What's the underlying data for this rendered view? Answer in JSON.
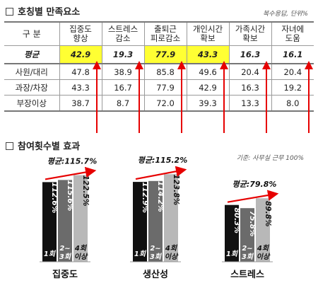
{
  "section1": {
    "title": "호칭별 만족요소",
    "note": "복수응답, 단위%"
  },
  "table": {
    "corner": "구 분",
    "columns": [
      [
        "집중도",
        "향상"
      ],
      [
        "스트레스",
        "감소"
      ],
      [
        "출퇴근",
        "피로감소"
      ],
      [
        "개인시간",
        "확보"
      ],
      [
        "가족시간",
        "확보"
      ],
      [
        "자녀에",
        "도움"
      ]
    ],
    "avg": {
      "label": "평균",
      "values": [
        "42.9",
        "19.3",
        "77.9",
        "43.3",
        "16.3",
        "16.1"
      ]
    },
    "rows": [
      {
        "label": "사원/대리",
        "values": [
          "47.8",
          "38.9",
          "85.8",
          "49.6",
          "20.4",
          "20.4"
        ]
      },
      {
        "label": "과장/차장",
        "values": [
          "43.3",
          "16.7",
          "77.9",
          "42.9",
          "16.3",
          "19.2"
        ]
      },
      {
        "label": "부장이상",
        "values": [
          "38.7",
          "8.7",
          "72.0",
          "39.3",
          "13.3",
          "8.0"
        ]
      }
    ],
    "arrow_color": "#e60000"
  },
  "section2": {
    "title": "참여횟수별 효과",
    "note": "기준: 사무실 근무 100%"
  },
  "chart_data": {
    "type": "bar",
    "categories": [
      "집중도",
      "생산성",
      "스트레스"
    ],
    "series": [
      {
        "name": "1회",
        "values": [
          112.6,
          112.9,
          80.3
        ],
        "labels": [
          "112.6%",
          "112.9%",
          "80.3%"
        ],
        "color": "#111111"
      },
      {
        "name": "2~3회",
        "values": [
          115.6,
          114.2,
          75.8
        ],
        "labels": [
          "115.6%",
          "114.2%",
          "75.8%"
        ],
        "color": "#6b6b6b"
      },
      {
        "name": "4회 이상",
        "values": [
          122.5,
          123.8,
          89.8
        ],
        "labels": [
          "122.5%",
          "123.8%",
          "89.8%"
        ],
        "color": "#b8b8b8"
      }
    ],
    "averages": [
      "평균:115.7%",
      "평균:115.2%",
      "평균:79.8%"
    ],
    "xlabel": "",
    "ylabel": "",
    "arrow_color": "#e60000"
  }
}
